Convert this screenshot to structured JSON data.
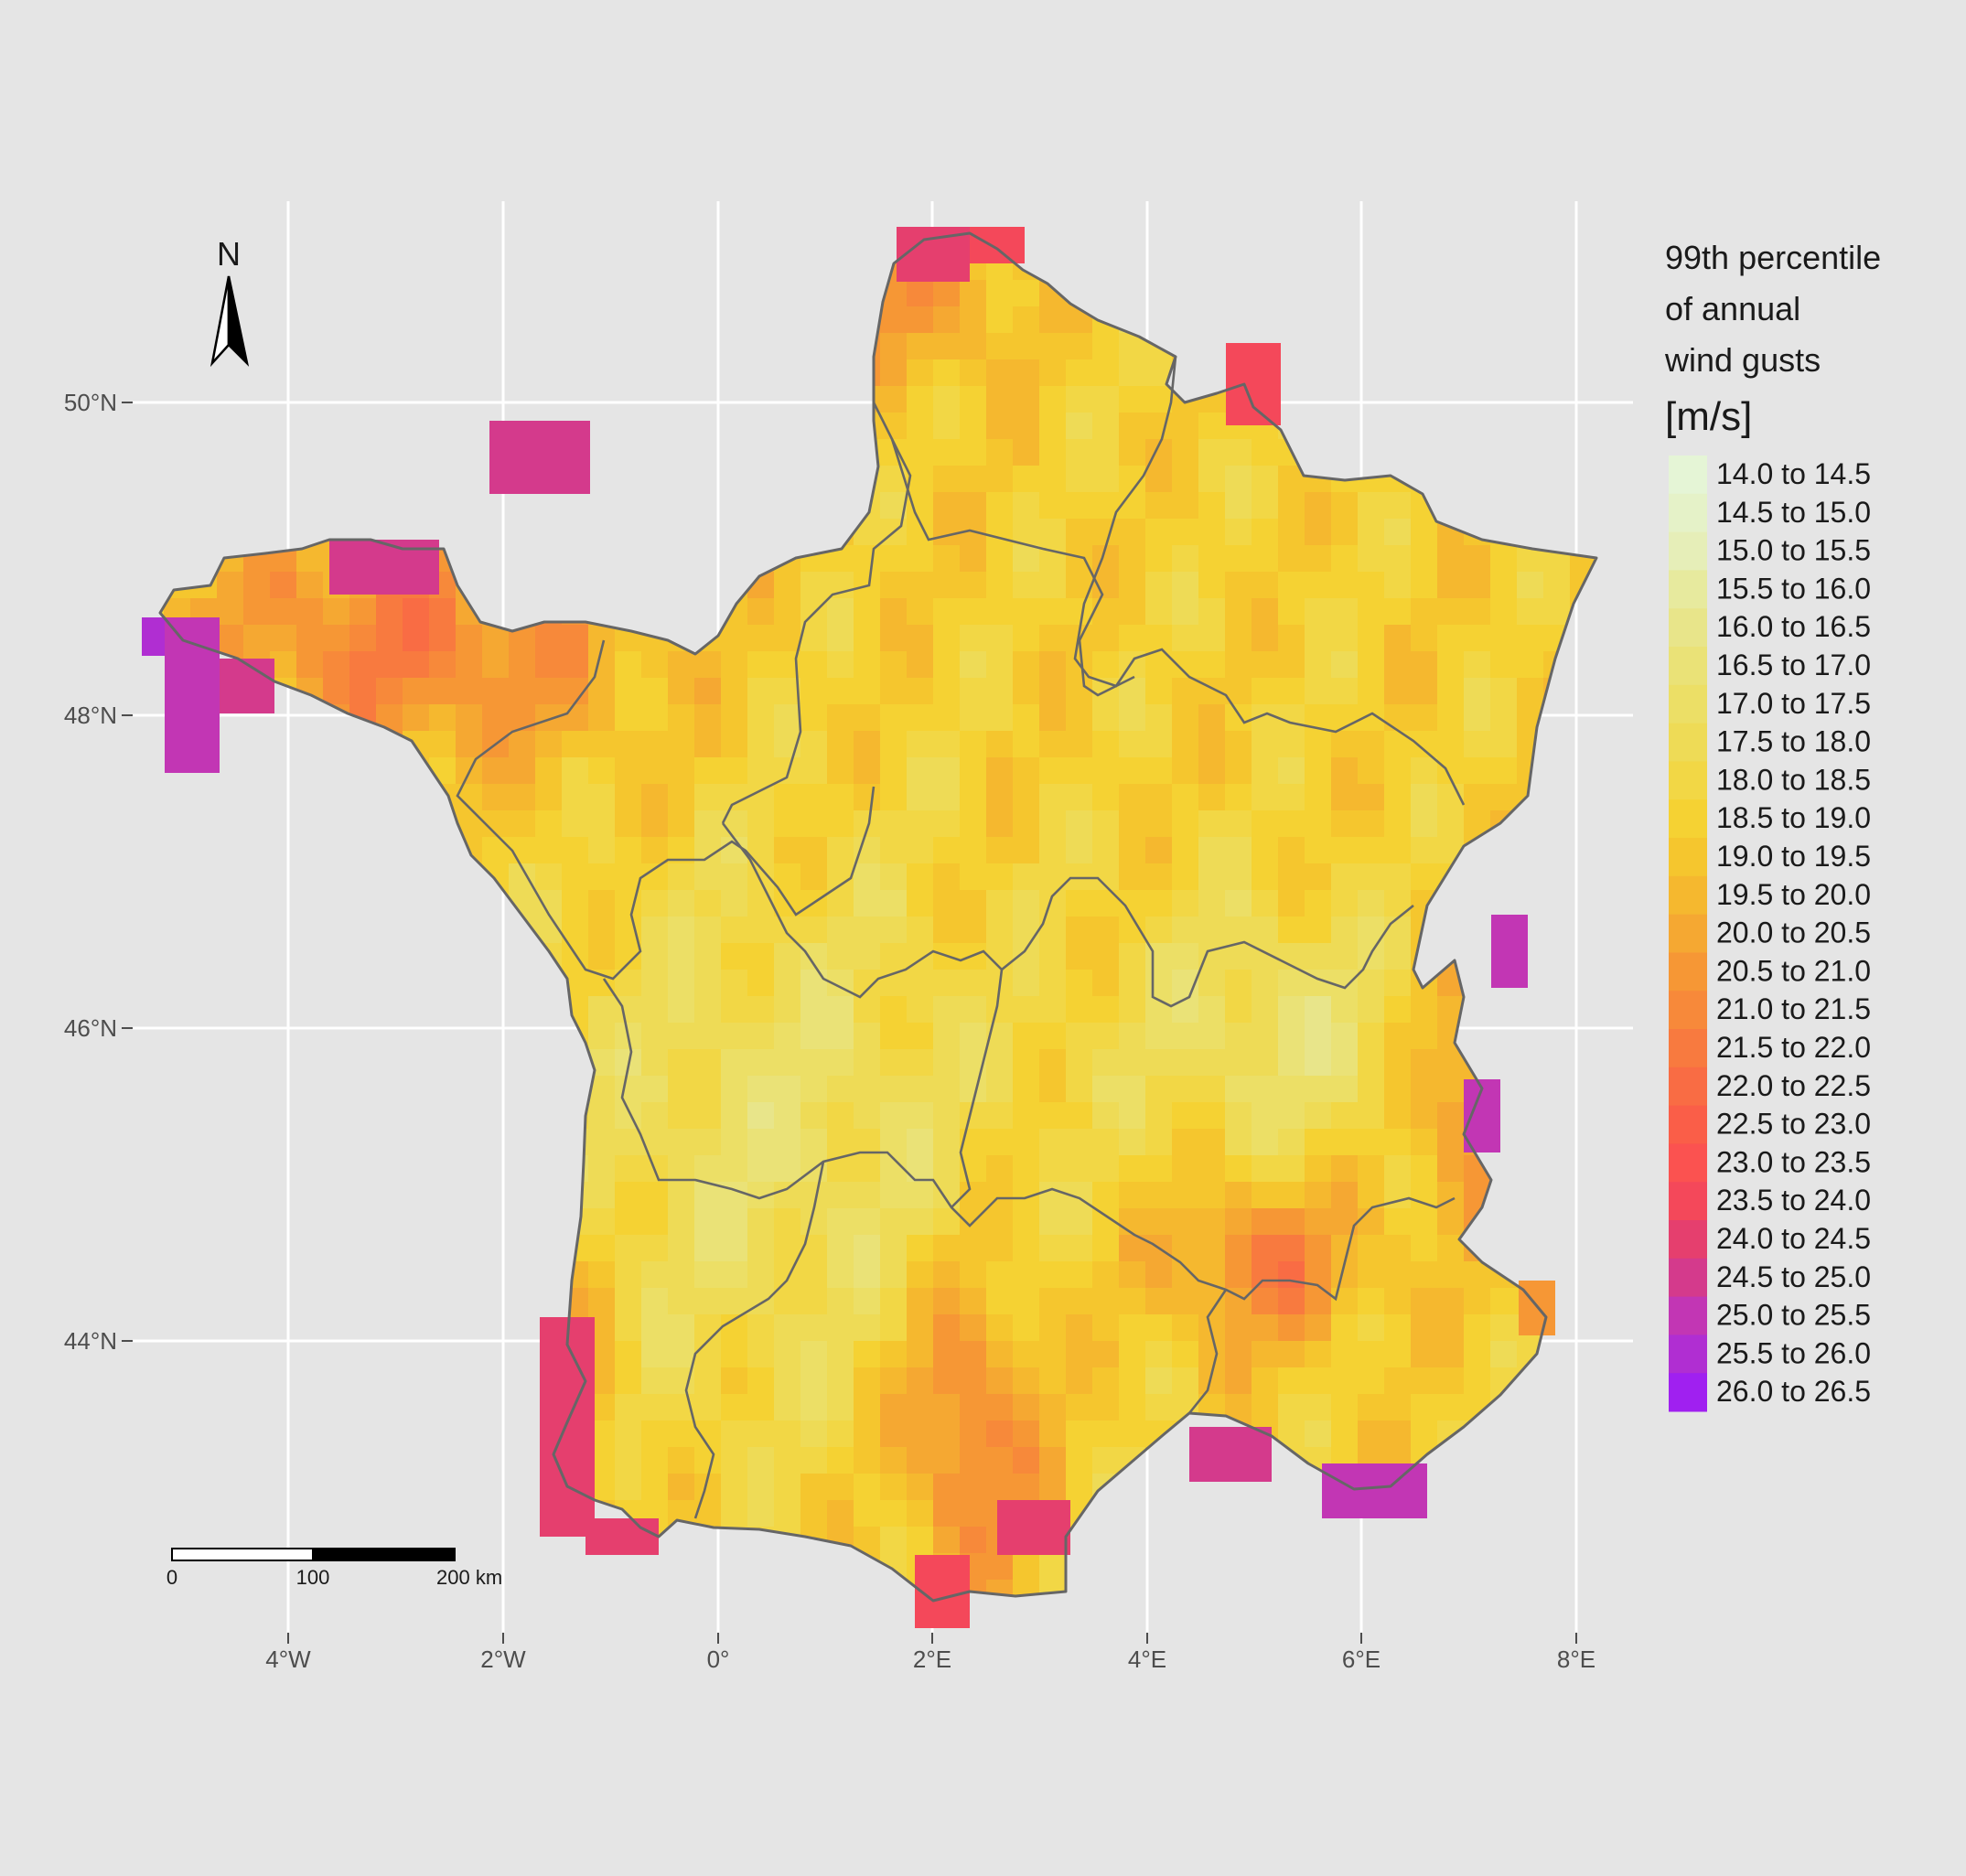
{
  "map": {
    "grid": true,
    "longitude_ticks": [
      "4°W",
      "2°W",
      "0°",
      "2°E",
      "4°E",
      "6°E",
      "8°E"
    ],
    "latitude_ticks": [
      "44°N",
      "46°N",
      "48°N",
      "50°N"
    ],
    "north_arrow": "N",
    "scale_bar": {
      "labels": [
        "0",
        "100",
        "200 km"
      ]
    },
    "outline_color": "#666666",
    "background_color": "#e5e5e5"
  },
  "legend": {
    "title_lines": [
      "99th percentile",
      "of annual",
      "wind gusts"
    ],
    "unit": "[m/s]",
    "position": "right",
    "items": [
      {
        "label": "14.0 to 14.5",
        "color": "#e5f5d6"
      },
      {
        "label": "14.5 to 15.0",
        "color": "#e5f2c8"
      },
      {
        "label": "15.0 to 15.5",
        "color": "#e6eeb8"
      },
      {
        "label": "15.5 to 16.0",
        "color": "#e7ea9e"
      },
      {
        "label": "16.0 to 16.5",
        "color": "#e8e58a"
      },
      {
        "label": "16.5 to 17.0",
        "color": "#eae277"
      },
      {
        "label": "17.0 to 17.5",
        "color": "#ecdf66"
      },
      {
        "label": "17.5 to 18.0",
        "color": "#eedb56"
      },
      {
        "label": "18.0 to 18.5",
        "color": "#f2d745"
      },
      {
        "label": "18.5 to 19.0",
        "color": "#f5d233"
      },
      {
        "label": "19.0 to 19.5",
        "color": "#f5c62e"
      },
      {
        "label": "19.5 to 20.0",
        "color": "#f5b82f"
      },
      {
        "label": "20.0 to 20.5",
        "color": "#f5a832"
      },
      {
        "label": "20.5 to 21.0",
        "color": "#f69735"
      },
      {
        "label": "21.0 to 21.5",
        "color": "#f7893a"
      },
      {
        "label": "21.5 to 22.0",
        "color": "#f87a3f"
      },
      {
        "label": "22.0 to 22.5",
        "color": "#f96c44"
      },
      {
        "label": "22.5 to 23.0",
        "color": "#fa5e48"
      },
      {
        "label": "23.0 to 23.5",
        "color": "#fb5250"
      },
      {
        "label": "23.5 to 24.0",
        "color": "#f4485a"
      },
      {
        "label": "24.0 to 24.5",
        "color": "#e53f6e"
      },
      {
        "label": "24.5 to 25.0",
        "color": "#d43a8c"
      },
      {
        "label": "25.0 to 25.5",
        "color": "#c236b4"
      },
      {
        "label": "25.5 to 26.0",
        "color": "#b02ed2"
      },
      {
        "label": "26.0 to 26.5",
        "color": "#a020f0"
      }
    ]
  }
}
